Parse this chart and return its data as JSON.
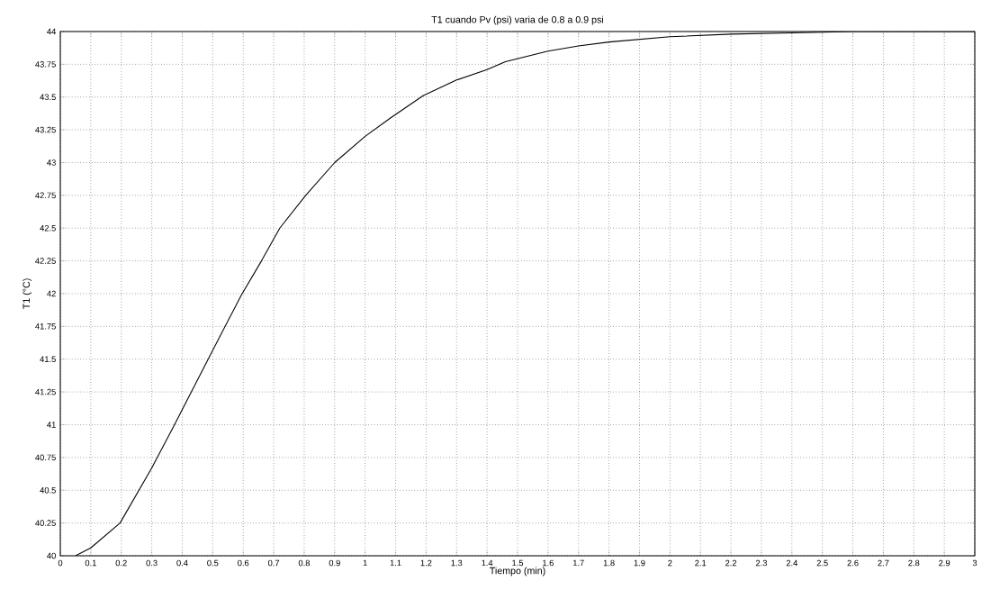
{
  "chart_data": {
    "type": "line",
    "title": "T1 cuando Pv (psi) varia de 0.8 a 0.9 psi",
    "xlabel": "Tiempo (min)",
    "ylabel": "T1 (°C)",
    "x": [
      0.05,
      0.1,
      0.196,
      0.3,
      0.37,
      0.485,
      0.594,
      0.66,
      0.72,
      0.805,
      0.9,
      1.0,
      1.083,
      1.19,
      1.3,
      1.4,
      1.46,
      1.6,
      1.7,
      1.8,
      2.0,
      2.2,
      2.4,
      2.6,
      2.8,
      3.0
    ],
    "series": [
      {
        "color": "#000000",
        "values": [
          40.0,
          40.06,
          40.25,
          40.67,
          40.98,
          41.5,
          41.99,
          42.25,
          42.5,
          42.75,
          43.0,
          43.2,
          43.34,
          43.51,
          43.63,
          43.71,
          43.77,
          43.85,
          43.89,
          43.92,
          43.96,
          43.98,
          43.99,
          44.0,
          44.0,
          44.0
        ]
      }
    ],
    "xlim": [
      0,
      3
    ],
    "ylim": [
      40,
      44
    ],
    "xticks": [
      0,
      0.1,
      0.2,
      0.3,
      0.4,
      0.5,
      0.6,
      0.7,
      0.8,
      0.9,
      1,
      1.1,
      1.2,
      1.3,
      1.4,
      1.5,
      1.6,
      1.7,
      1.8,
      1.9,
      2,
      2.1,
      2.2,
      2.3,
      2.4,
      2.5,
      2.6,
      2.7,
      2.8,
      2.9,
      3
    ],
    "yticks": [
      40,
      40.25,
      40.5,
      40.75,
      41,
      41.25,
      41.5,
      41.75,
      42,
      42.25,
      42.5,
      42.75,
      43,
      43.25,
      43.5,
      43.75,
      44
    ],
    "grid": true,
    "marker": "none",
    "line_style": "solid"
  }
}
